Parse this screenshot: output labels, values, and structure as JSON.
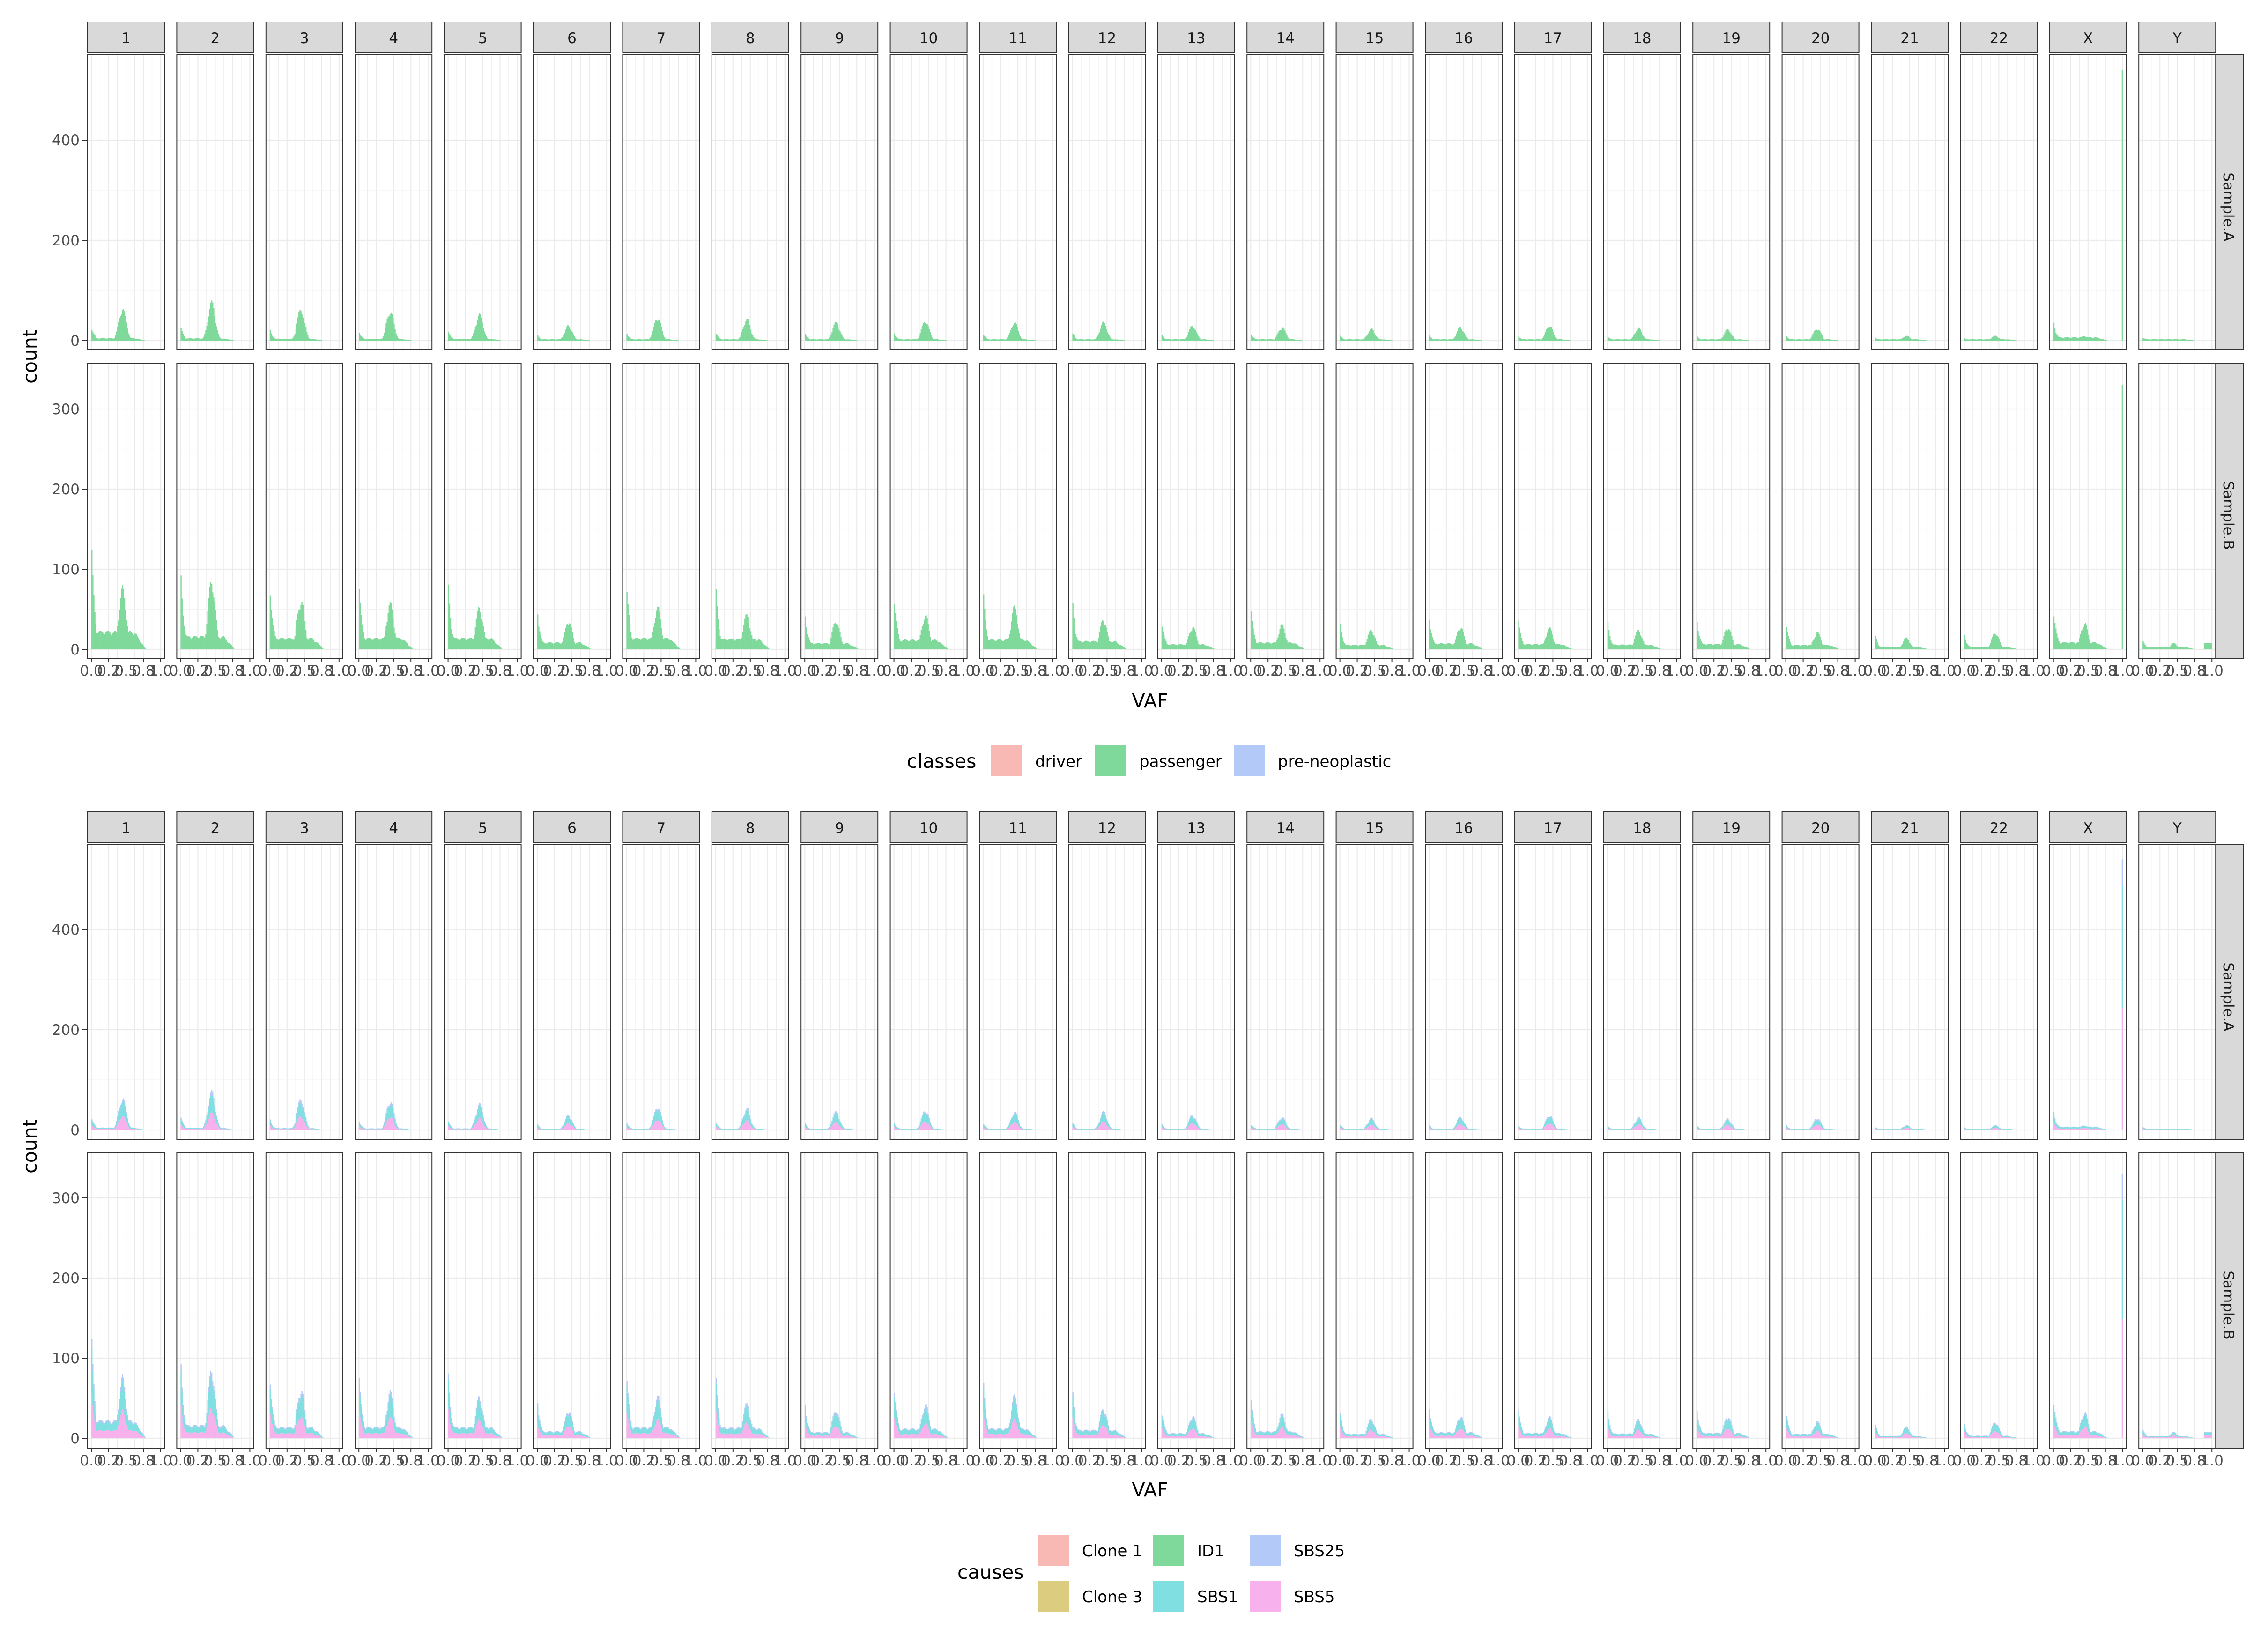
{
  "chart_data": [
    {
      "type": "bar",
      "subtype": "faceted-stacked-histogram",
      "xlabel": "VAF",
      "ylabel": "count",
      "x_ticks": [
        "0.0",
        "0.2",
        "0.5",
        "0.8",
        "1.0"
      ],
      "xlim": [
        0,
        1
      ],
      "column_facets": [
        "1",
        "2",
        "3",
        "4",
        "5",
        "6",
        "7",
        "8",
        "9",
        "10",
        "11",
        "12",
        "13",
        "14",
        "15",
        "16",
        "17",
        "18",
        "19",
        "20",
        "21",
        "22",
        "X",
        "Y"
      ],
      "row_facets": [
        "Sample.A",
        "Sample.B"
      ],
      "y_ticks": {
        "Sample.A": [
          0,
          200,
          400
        ],
        "Sample.B": [
          0,
          100,
          200,
          300
        ]
      },
      "ylim": {
        "Sample.A": [
          0,
          560
        ],
        "Sample.B": [
          0,
          340
        ]
      },
      "legend": {
        "title": "classes",
        "position": "bottom",
        "entries": [
          "driver",
          "passenger",
          "pre-neoplastic"
        ]
      },
      "colors": {
        "driver": "#F8B9B5",
        "passenger": "#7FD99A",
        "pre-neoplastic": "#B3C9F8"
      },
      "fill_series": [
        "passenger"
      ],
      "facet_data": {
        "Sample.A": {
          "peak_low": [
            32,
            30,
            25,
            22,
            22,
            13,
            18,
            18,
            16,
            18,
            16,
            17,
            14,
            15,
            12,
            12,
            12,
            10,
            10,
            12,
            7,
            6,
            44,
            8
          ],
          "peak_mid": [
            68,
            80,
            65,
            62,
            55,
            32,
            50,
            45,
            38,
            42,
            38,
            38,
            32,
            28,
            25,
            28,
            32,
            26,
            24,
            26,
            10,
            10,
            10,
            2
          ]
        },
        "Sample.B": {
          "peak_low": [
            150,
            110,
            95,
            95,
            95,
            58,
            95,
            88,
            52,
            80,
            82,
            70,
            42,
            58,
            38,
            50,
            45,
            40,
            45,
            38,
            20,
            22,
            60,
            12
          ],
          "peak_mid": [
            80,
            90,
            65,
            60,
            55,
            38,
            55,
            45,
            38,
            45,
            55,
            40,
            30,
            32,
            26,
            30,
            28,
            25,
            30,
            22,
            15,
            22,
            35,
            8
          ]
        },
        "x_spike": {
          "Sample.A": 540,
          "Sample.B": 330
        }
      }
    },
    {
      "type": "bar",
      "subtype": "faceted-stacked-histogram",
      "xlabel": "VAF",
      "ylabel": "count",
      "x_ticks": [
        "0.0",
        "0.2",
        "0.5",
        "0.8",
        "1.0"
      ],
      "xlim": [
        0,
        1
      ],
      "column_facets": [
        "1",
        "2",
        "3",
        "4",
        "5",
        "6",
        "7",
        "8",
        "9",
        "10",
        "11",
        "12",
        "13",
        "14",
        "15",
        "16",
        "17",
        "18",
        "19",
        "20",
        "21",
        "22",
        "X",
        "Y"
      ],
      "row_facets": [
        "Sample.A",
        "Sample.B"
      ],
      "y_ticks": {
        "Sample.A": [
          0,
          200,
          400
        ],
        "Sample.B": [
          0,
          100,
          200,
          300
        ]
      },
      "ylim": {
        "Sample.A": [
          0,
          560
        ],
        "Sample.B": [
          0,
          340
        ]
      },
      "legend": {
        "title": "causes",
        "position": "bottom",
        "entries": [
          "Clone 1",
          "Clone 3",
          "ID1",
          "SBS1",
          "SBS25",
          "SBS5"
        ]
      },
      "colors": {
        "Clone 1": "#F8B9B5",
        "Clone 3": "#DBCC80",
        "ID1": "#7FD99A",
        "SBS1": "#80DFE0",
        "SBS25": "#B3C9F8",
        "SBS5": "#F7B1EC"
      },
      "fill_series": [
        "SBS5",
        "SBS1",
        "SBS25"
      ],
      "series_share": {
        "SBS5": 0.45,
        "SBS1": 0.45,
        "SBS25": 0.1
      },
      "facet_data_same_as_panel": 1
    }
  ]
}
